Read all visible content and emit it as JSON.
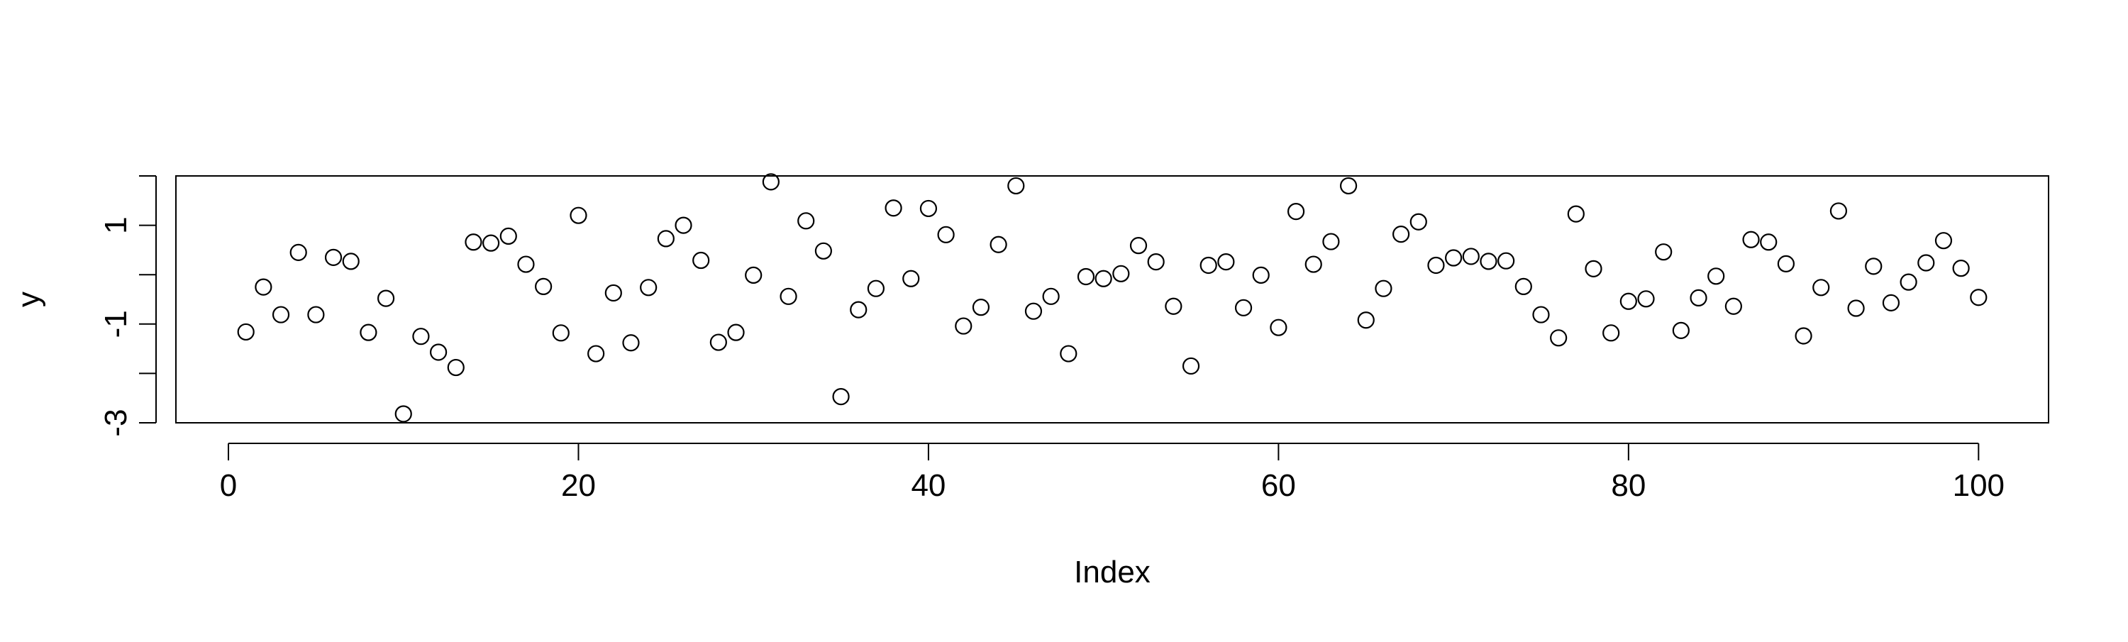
{
  "chart_data": {
    "type": "scatter",
    "title": "",
    "xlabel": "Index",
    "ylabel": "y",
    "xlim": [
      -3,
      104
    ],
    "ylim": [
      -3,
      2
    ],
    "x_ticks": [
      0,
      20,
      40,
      60,
      80,
      100
    ],
    "x_tick_labels": [
      "0",
      "20",
      "40",
      "60",
      "80",
      "100"
    ],
    "y_ticks": [
      -3,
      -2,
      -1,
      0,
      1,
      2
    ],
    "y_tick_labels": [
      "-3",
      "",
      "-1",
      "",
      "1",
      ""
    ],
    "grid": false,
    "marker": "open-circle",
    "colors": {
      "points": "#000000",
      "axes": "#000000",
      "background": "#ffffff"
    },
    "x": [
      1,
      2,
      3,
      4,
      5,
      6,
      7,
      8,
      9,
      10,
      11,
      12,
      13,
      14,
      15,
      16,
      17,
      18,
      19,
      20,
      21,
      22,
      23,
      24,
      25,
      26,
      27,
      28,
      29,
      30,
      31,
      32,
      33,
      34,
      35,
      36,
      37,
      38,
      39,
      40,
      41,
      42,
      43,
      44,
      45,
      46,
      47,
      48,
      49,
      50,
      51,
      52,
      53,
      54,
      55,
      56,
      57,
      58,
      59,
      60,
      61,
      62,
      63,
      64,
      65,
      66,
      67,
      68,
      69,
      70,
      71,
      72,
      73,
      74,
      75,
      76,
      77,
      78,
      79,
      80,
      81,
      82,
      83,
      84,
      85,
      86,
      87,
      88,
      89,
      90,
      91,
      92,
      93,
      94,
      95,
      96,
      97,
      98,
      99,
      100
    ],
    "y": [
      -1.16,
      -0.25,
      -0.81,
      0.45,
      -0.81,
      0.35,
      0.27,
      -1.17,
      -0.48,
      -2.82,
      -1.25,
      -1.57,
      -1.88,
      0.66,
      0.64,
      0.78,
      0.21,
      -0.24,
      -1.18,
      1.2,
      -1.6,
      -0.37,
      -1.38,
      -0.26,
      0.73,
      1.0,
      0.29,
      -1.37,
      -1.17,
      -0.01,
      1.88,
      -0.44,
      1.09,
      0.48,
      -2.47,
      -0.71,
      -0.28,
      1.35,
      -0.08,
      1.34,
      0.81,
      -1.04,
      -0.66,
      0.61,
      1.8,
      -0.74,
      -0.44,
      -1.6,
      -0.04,
      -0.08,
      0.02,
      0.59,
      0.26,
      -0.64,
      -1.85,
      0.19,
      0.26,
      -0.67,
      -0.01,
      -1.07,
      1.28,
      0.21,
      0.67,
      1.8,
      -0.92,
      -0.28,
      0.82,
      1.07,
      0.19,
      0.34,
      0.37,
      0.27,
      0.28,
      -0.24,
      -0.81,
      -1.28,
      1.23,
      0.12,
      -1.18,
      -0.54,
      -0.49,
      0.46,
      -1.13,
      -0.47,
      -0.03,
      -0.64,
      0.71,
      0.66,
      0.22,
      -1.24,
      -0.26,
      1.29,
      -0.68,
      0.17,
      -0.57,
      -0.15,
      0.24,
      0.69,
      0.13,
      -0.46
    ]
  }
}
